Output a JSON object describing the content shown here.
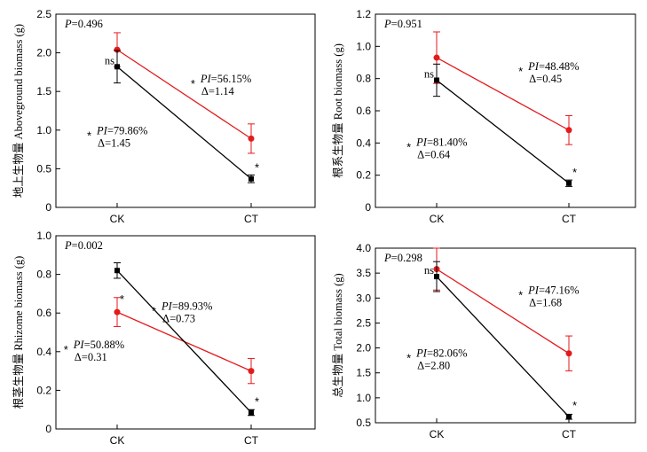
{
  "chart_data": [
    {
      "type": "line",
      "panel": "a",
      "ylabel": "地上生物量 Aboveground biomass (g)",
      "categories": [
        "CK",
        "CT"
      ],
      "ylim": [
        0,
        2.5
      ],
      "yticks": [
        "0",
        "0.5",
        "1.0",
        "1.5",
        "2.0",
        "2.5"
      ],
      "series": [
        {
          "color": "#e31a1c",
          "values": [
            2.04,
            0.89
          ],
          "errors": [
            0.22,
            0.19
          ]
        },
        {
          "color": "#000000",
          "values": [
            1.82,
            0.37
          ],
          "errors": [
            0.21,
            0.05
          ]
        }
      ],
      "p_label": "P=0.496",
      "red_note": {
        "pi": "PI=56.15%",
        "delta": "Δ=1.14",
        "star": "*",
        "x": 0.52,
        "y": 1.55
      },
      "black_note": {
        "pi": "PI=79.86%",
        "delta": "Δ=1.45",
        "star": "*",
        "x": 0.12,
        "y": 0.88
      },
      "ck_note": "ns",
      "ct_star": "*"
    },
    {
      "type": "line",
      "panel": "b",
      "ylabel": "根系生物量 Root biomass (g)",
      "categories": [
        "CK",
        "CT"
      ],
      "ylim": [
        0,
        1.2
      ],
      "yticks": [
        "0",
        "0.2",
        "0.4",
        "0.6",
        "0.8",
        "1.0",
        "1.2"
      ],
      "series": [
        {
          "color": "#e31a1c",
          "values": [
            0.93,
            0.48
          ],
          "errors": [
            0.16,
            0.09
          ]
        },
        {
          "color": "#000000",
          "values": [
            0.79,
            0.15
          ],
          "errors": [
            0.1,
            0.02
          ]
        }
      ],
      "p_label": "P=0.951",
      "red_note": {
        "pi": "PI=48.48%",
        "delta": "Δ=0.45",
        "star": "*",
        "x": 0.55,
        "y": 0.82
      },
      "black_note": {
        "pi": "PI=81.40%",
        "delta": "Δ=0.64",
        "star": "*",
        "x": 0.12,
        "y": 0.35
      },
      "ck_note": "ns",
      "ct_star": "*"
    },
    {
      "type": "line",
      "panel": "c",
      "ylabel": "根茎生物量 Rhizome biomass (g)",
      "categories": [
        "CK",
        "CT"
      ],
      "ylim": [
        0,
        1.0
      ],
      "yticks": [
        "0",
        "0.2",
        "0.4",
        "0.6",
        "0.8",
        "1.0"
      ],
      "series": [
        {
          "color": "#e31a1c",
          "values": [
            0.605,
            0.3
          ],
          "errors": [
            0.075,
            0.065
          ]
        },
        {
          "color": "#000000",
          "values": [
            0.82,
            0.085
          ],
          "errors": [
            0.04,
            0.015
          ]
        }
      ],
      "p_label": "P=0.002",
      "red_note": {
        "pi": "PI=50.88%",
        "delta": "Δ=0.31",
        "star": "*",
        "x": 0.03,
        "y": 0.39
      },
      "black_note": {
        "pi": "PI=89.93%",
        "delta": "Δ=0.73",
        "star": "*",
        "x": 0.37,
        "y": 0.59
      },
      "ck_note": "*",
      "ct_star": "*"
    },
    {
      "type": "line",
      "panel": "d",
      "ylabel": "总生物量 Total biomass (g)",
      "categories": [
        "CK",
        "CT"
      ],
      "ylim": [
        0.5,
        4.0
      ],
      "yticks": [
        "0.5",
        "1.0",
        "1.5",
        "2.0",
        "2.5",
        "3.0",
        "3.5",
        "4.0"
      ],
      "series": [
        {
          "color": "#e31a1c",
          "values": [
            3.58,
            1.89
          ],
          "errors": [
            0.42,
            0.35
          ]
        },
        {
          "color": "#000000",
          "values": [
            3.43,
            0.62
          ],
          "errors": [
            0.3,
            0.05
          ]
        }
      ],
      "p_label": "P=0.298",
      "red_note": {
        "pi": "PI=47.16%",
        "delta": "Δ=1.68",
        "star": "*",
        "x": 0.55,
        "y": 2.98
      },
      "black_note": {
        "pi": "PI=82.06%",
        "delta": "Δ=2.80",
        "star": "*",
        "x": 0.12,
        "y": 1.72
      },
      "ck_note": "ns",
      "ct_star": "*"
    }
  ]
}
